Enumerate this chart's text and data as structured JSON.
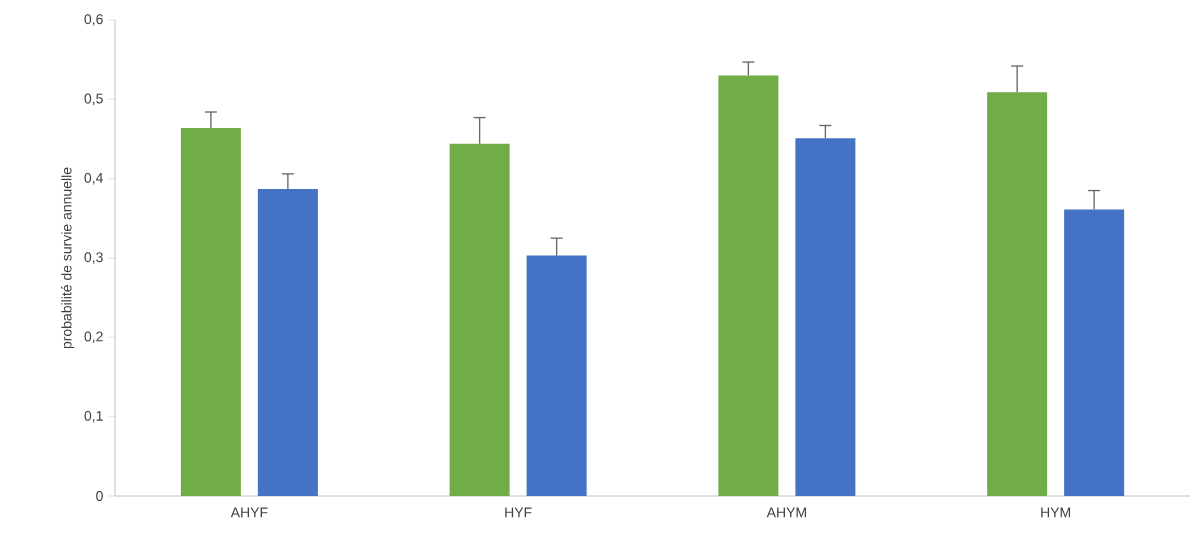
{
  "chart_data": {
    "type": "bar",
    "ylabel": "probabilité de survie annuelle",
    "categories": [
      "AHYF",
      "HYF",
      "AHYM",
      "HYM"
    ],
    "series": [
      {
        "color": "#70ad47",
        "values": [
          0.464,
          0.444,
          0.53,
          0.509
        ],
        "errors": [
          [
            0.464,
            0.484
          ],
          [
            0.444,
            0.477
          ],
          [
            0.53,
            0.547
          ],
          [
            0.509,
            0.542
          ]
        ]
      },
      {
        "color": "#4472c4",
        "values": [
          0.387,
          0.303,
          0.451,
          0.361
        ],
        "errors": [
          [
            0.387,
            0.406
          ],
          [
            0.303,
            0.325
          ],
          [
            0.451,
            0.467
          ],
          [
            0.361,
            0.385
          ]
        ]
      }
    ],
    "ylim": [
      0,
      0.6
    ],
    "yticks": [
      {
        "value": 0,
        "label": "0"
      },
      {
        "value": 0.1,
        "label": "0,1"
      },
      {
        "value": 0.2,
        "label": "0,2"
      },
      {
        "value": 0.3,
        "label": "0,3"
      },
      {
        "value": 0.4,
        "label": "0,4"
      },
      {
        "value": 0.5,
        "label": "0,5"
      },
      {
        "value": 0.6,
        "label": "0,6"
      }
    ],
    "grid": false
  }
}
